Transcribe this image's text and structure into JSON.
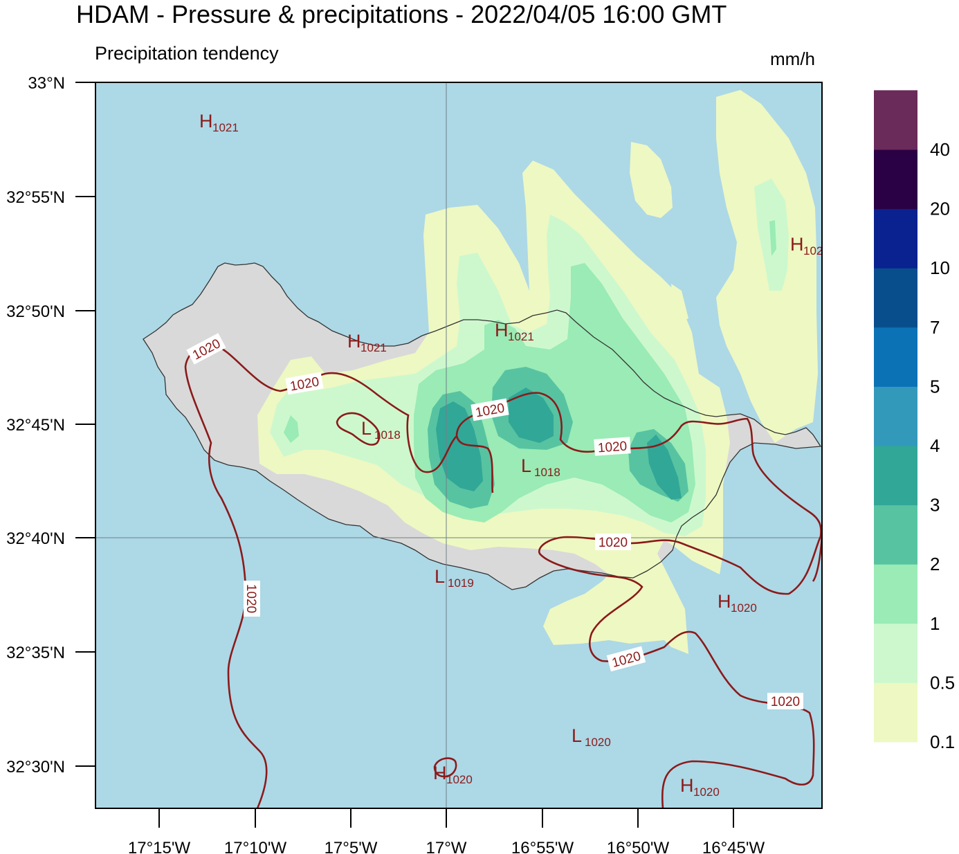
{
  "title": "HDAM - Pressure & precipitations  -  2022/04/05  16:00 GMT",
  "subtitle": "Precipitation tendency",
  "unit": "mm/h",
  "colors": {
    "sea": "#add8e6",
    "land": "#d9d9d9",
    "coast": "#333333",
    "isobar": "#8b1a1a",
    "grid": "#6f7f88"
  },
  "lat_labels": [
    "33°N",
    "32°55'N",
    "32°50'N",
    "32°45'N",
    "32°40'N",
    "32°35'N",
    "32°30'N"
  ],
  "lon_labels": [
    "17°15'W",
    "17°10'W",
    "17°5'W",
    "17°W",
    "16°55'W",
    "16°50'W",
    "16°45'W"
  ],
  "legend": {
    "labels": [
      "0.1",
      "0.5",
      "1",
      "2",
      "3",
      "4",
      "5",
      "7",
      "10",
      "20",
      "40"
    ],
    "colors": [
      "#eef8c2",
      "#cdf8ce",
      "#9aebb5",
      "#57c3a1",
      "#31a797",
      "#3399bb",
      "#0b72b6",
      "#084e8d",
      "#0a2190",
      "#2a0144",
      "#6a2a5a"
    ]
  },
  "isobar_labels": [
    "1020",
    "1020",
    "1020",
    "1020",
    "1020",
    "1020",
    "1020",
    "1020"
  ],
  "pressure_centers": [
    {
      "letter": "H",
      "value": "1021"
    },
    {
      "letter": "H",
      "value": "1021"
    },
    {
      "letter": "H",
      "value": "1021"
    },
    {
      "letter": "H",
      "value": "102"
    },
    {
      "letter": "L",
      "value": "1018"
    },
    {
      "letter": "L",
      "value": "1018"
    },
    {
      "letter": "L",
      "value": "1019"
    },
    {
      "letter": "H",
      "value": "1020"
    },
    {
      "letter": "L",
      "value": "1020"
    },
    {
      "letter": "H",
      "value": "1020"
    },
    {
      "letter": "H",
      "value": "1020"
    }
  ]
}
